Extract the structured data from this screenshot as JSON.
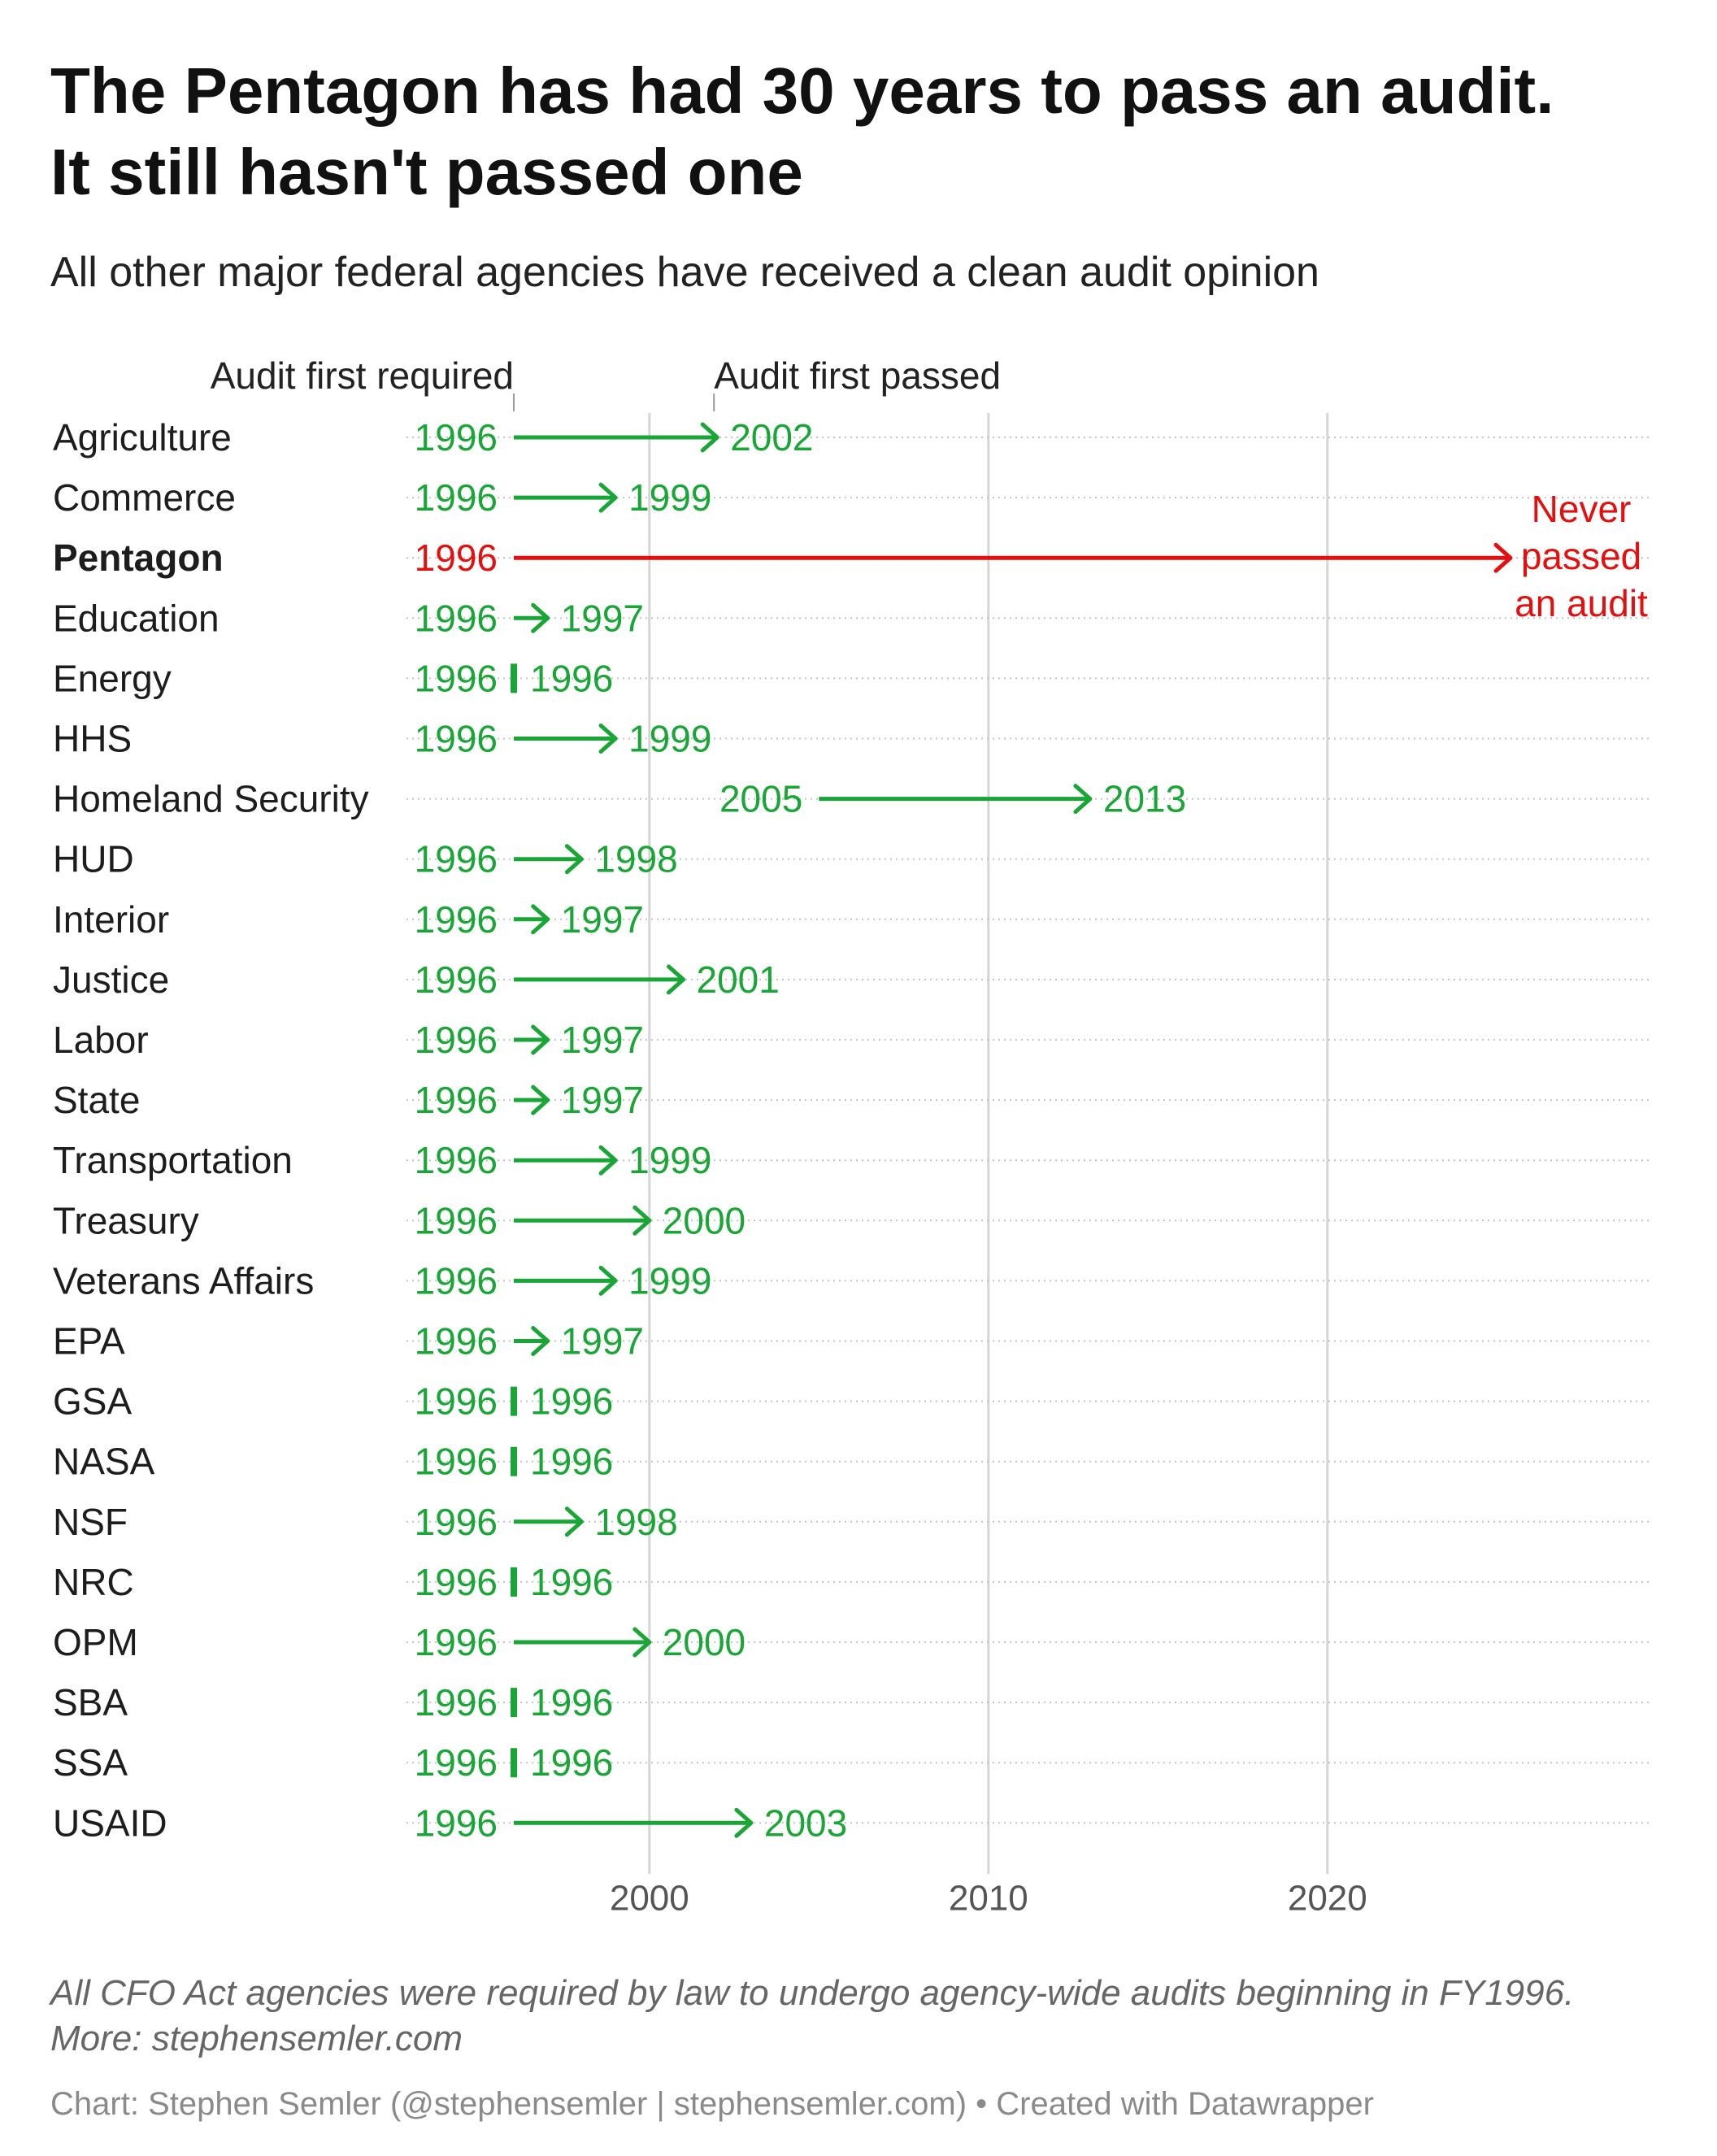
{
  "title_line1": "The Pentagon has had 30 years to pass an audit.",
  "title_line2": "It still hasn't passed one",
  "subtitle": "All other major federal agencies have received a clean audit opinion",
  "notes_line1": "All CFO Act agencies were required by law to undergo agency-wide audits beginning in FY1996.",
  "notes_line2": "More: stephensemler.com",
  "credit": "Chart: Stephen Semler (@stephensemler | stephensemler.com) • Created with Datawrapper",
  "colors": {
    "passed": "#1aa636",
    "never": "#e3100f",
    "grid": "#d6d6d6",
    "dots": "#c4c4c4"
  },
  "chart_data": {
    "type": "arrow-range",
    "x_ticks": [
      "2000",
      "2010",
      "2020"
    ],
    "xlim": [
      1992,
      2030
    ],
    "header_required": "Audit first required",
    "header_passed": "Audit first passed",
    "never_label": [
      "Never",
      "passed",
      "an audit"
    ],
    "rows": [
      {
        "agency": "Agriculture",
        "required": 1996,
        "passed": 2002
      },
      {
        "agency": "Commerce",
        "required": 1996,
        "passed": 1999
      },
      {
        "agency": "Pentagon",
        "required": 1996,
        "passed": null
      },
      {
        "agency": "Education",
        "required": 1996,
        "passed": 1997
      },
      {
        "agency": "Energy",
        "required": 1996,
        "passed": 1996
      },
      {
        "agency": "HHS",
        "required": 1996,
        "passed": 1999
      },
      {
        "agency": "Homeland Security",
        "required": 2005,
        "passed": 2013
      },
      {
        "agency": "HUD",
        "required": 1996,
        "passed": 1998
      },
      {
        "agency": "Interior",
        "required": 1996,
        "passed": 1997
      },
      {
        "agency": "Justice",
        "required": 1996,
        "passed": 2001
      },
      {
        "agency": "Labor",
        "required": 1996,
        "passed": 1997
      },
      {
        "agency": "State",
        "required": 1996,
        "passed": 1997
      },
      {
        "agency": "Transportation",
        "required": 1996,
        "passed": 1999
      },
      {
        "agency": "Treasury",
        "required": 1996,
        "passed": 2000
      },
      {
        "agency": "Veterans Affairs",
        "required": 1996,
        "passed": 1999
      },
      {
        "agency": "EPA",
        "required": 1996,
        "passed": 1997
      },
      {
        "agency": "GSA",
        "required": 1996,
        "passed": 1996
      },
      {
        "agency": "NASA",
        "required": 1996,
        "passed": 1996
      },
      {
        "agency": "NSF",
        "required": 1996,
        "passed": 1998
      },
      {
        "agency": "NRC",
        "required": 1996,
        "passed": 1996
      },
      {
        "agency": "OPM",
        "required": 1996,
        "passed": 2000
      },
      {
        "agency": "SBA",
        "required": 1996,
        "passed": 1996
      },
      {
        "agency": "SSA",
        "required": 1996,
        "passed": 1996
      },
      {
        "agency": "USAID",
        "required": 1996,
        "passed": 2003
      }
    ]
  }
}
